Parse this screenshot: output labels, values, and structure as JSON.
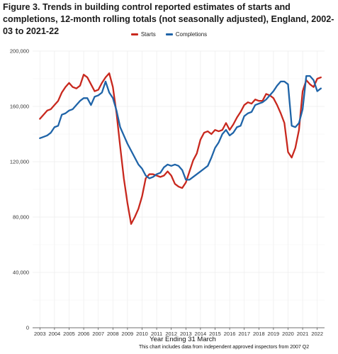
{
  "chart_data": {
    "type": "line",
    "title": "Figure 3. Trends in building control reported estimates of starts and completions, 12-month rolling totals (not seasonally adjusted), England, 2002-03 to 2021-22",
    "xlabel": "Year Ending 31 March",
    "ylabel": "",
    "x_tick_labels": [
      "2003",
      "2004",
      "2005",
      "2006",
      "2007",
      "2008",
      "2009",
      "2010",
      "2011",
      "2012",
      "2013",
      "2014",
      "2015",
      "2016",
      "2017",
      "2018",
      "2019",
      "2020",
      "2021",
      "2022"
    ],
    "y_tick_labels": [
      "0",
      "40,000",
      "80,000",
      "120,000",
      "160,000",
      "200,000"
    ],
    "y_ticks": [
      0,
      40000,
      80000,
      120000,
      160000,
      200000
    ],
    "ylim": [
      0,
      200000
    ],
    "xlim": [
      2002.5,
      2022.5
    ],
    "grid": true,
    "legend_position": "top-center",
    "footnote": "This chart includes data from independent approved inspectors from 2007 Q2",
    "series": [
      {
        "name": "Starts",
        "color": "#c8281e",
        "x": [
          2003.0,
          2003.25,
          2003.5,
          2003.75,
          2004.0,
          2004.25,
          2004.5,
          2004.75,
          2005.0,
          2005.25,
          2005.5,
          2005.75,
          2006.0,
          2006.25,
          2006.5,
          2006.75,
          2007.0,
          2007.25,
          2007.5,
          2007.75,
          2008.0,
          2008.25,
          2008.5,
          2008.75,
          2009.0,
          2009.25,
          2009.5,
          2009.75,
          2010.0,
          2010.25,
          2010.5,
          2010.75,
          2011.0,
          2011.25,
          2011.5,
          2011.75,
          2012.0,
          2012.25,
          2012.5,
          2012.75,
          2013.0,
          2013.25,
          2013.5,
          2013.75,
          2014.0,
          2014.25,
          2014.5,
          2014.75,
          2015.0,
          2015.25,
          2015.5,
          2015.75,
          2016.0,
          2016.25,
          2016.5,
          2016.75,
          2017.0,
          2017.25,
          2017.5,
          2017.75,
          2018.0,
          2018.25,
          2018.5,
          2018.75,
          2019.0,
          2019.25,
          2019.5,
          2019.75,
          2020.0,
          2020.25,
          2020.5,
          2020.75,
          2021.0,
          2021.25,
          2021.5,
          2021.75,
          2022.0,
          2022.25
        ],
        "values": [
          151000,
          154000,
          157000,
          158000,
          161000,
          164000,
          170000,
          174000,
          177000,
          174000,
          173000,
          175000,
          183000,
          181000,
          176000,
          171000,
          172000,
          177000,
          181000,
          184000,
          174000,
          155000,
          131000,
          108000,
          90000,
          75000,
          80000,
          86000,
          95000,
          108000,
          111000,
          111000,
          110000,
          109000,
          110000,
          113000,
          110000,
          104000,
          102000,
          101000,
          105000,
          113000,
          121000,
          126000,
          136000,
          141000,
          142000,
          140000,
          143000,
          142000,
          143000,
          148000,
          143000,
          147000,
          152000,
          156000,
          161000,
          163000,
          162000,
          165000,
          164000,
          164000,
          169000,
          168000,
          166000,
          161000,
          155000,
          148000,
          127000,
          123000,
          130000,
          143000,
          171000,
          179000,
          176000,
          174000,
          180000,
          181000
        ]
      },
      {
        "name": "Completions",
        "color": "#1f64a8",
        "x": [
          2003.0,
          2003.25,
          2003.5,
          2003.75,
          2004.0,
          2004.25,
          2004.5,
          2004.75,
          2005.0,
          2005.25,
          2005.5,
          2005.75,
          2006.0,
          2006.25,
          2006.5,
          2006.75,
          2007.0,
          2007.25,
          2007.5,
          2007.75,
          2008.0,
          2008.25,
          2008.5,
          2008.75,
          2009.0,
          2009.25,
          2009.5,
          2009.75,
          2010.0,
          2010.25,
          2010.5,
          2010.75,
          2011.0,
          2011.25,
          2011.5,
          2011.75,
          2012.0,
          2012.25,
          2012.5,
          2012.75,
          2013.0,
          2013.25,
          2013.5,
          2013.75,
          2014.0,
          2014.25,
          2014.5,
          2014.75,
          2015.0,
          2015.25,
          2015.5,
          2015.75,
          2016.0,
          2016.25,
          2016.5,
          2016.75,
          2017.0,
          2017.25,
          2017.5,
          2017.75,
          2018.0,
          2018.25,
          2018.5,
          2018.75,
          2019.0,
          2019.25,
          2019.5,
          2019.75,
          2020.0,
          2020.25,
          2020.5,
          2020.75,
          2021.0,
          2021.25,
          2021.5,
          2021.75,
          2022.0,
          2022.25
        ],
        "values": [
          137000,
          138000,
          139000,
          141000,
          145000,
          146000,
          154000,
          155000,
          157000,
          158000,
          161000,
          164000,
          166000,
          166000,
          161000,
          167000,
          168000,
          170000,
          178000,
          170000,
          166000,
          157000,
          145000,
          139000,
          133000,
          128000,
          123000,
          118000,
          115000,
          110000,
          108000,
          109000,
          111000,
          112000,
          116000,
          118000,
          117000,
          118000,
          117000,
          114000,
          107000,
          107000,
          109000,
          111000,
          113000,
          115000,
          117000,
          123000,
          130000,
          134000,
          140000,
          143000,
          139000,
          141000,
          145000,
          146000,
          153000,
          155000,
          156000,
          161000,
          162000,
          163000,
          165000,
          168000,
          171000,
          175000,
          178000,
          178000,
          176000,
          146000,
          145000,
          148000,
          158000,
          182000,
          182000,
          179000,
          171000,
          173000
        ]
      }
    ]
  }
}
